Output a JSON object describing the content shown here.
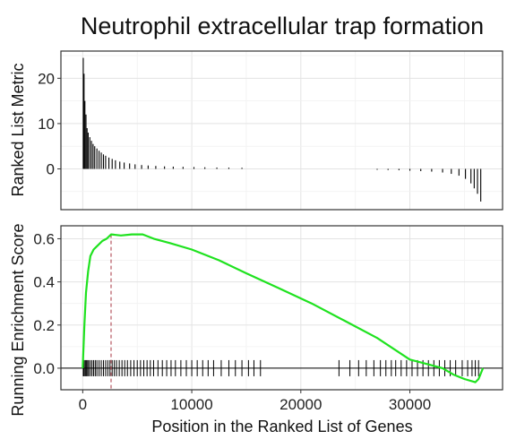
{
  "chart_data": [
    {
      "type": "bar",
      "panel": "ranked-list-metric",
      "title": "Neutrophil extracellular trap formation",
      "ylabel": "Ranked List Metric",
      "xlim": [
        -2000,
        38500
      ],
      "ylim": [
        -9,
        26
      ],
      "yticks": [
        0,
        10,
        20
      ],
      "grid": true,
      "bars": [
        {
          "x": 50,
          "y": 24.5
        },
        {
          "x": 120,
          "y": 21
        },
        {
          "x": 200,
          "y": 15
        },
        {
          "x": 300,
          "y": 12
        },
        {
          "x": 400,
          "y": 9
        },
        {
          "x": 500,
          "y": 8
        },
        {
          "x": 650,
          "y": 7
        },
        {
          "x": 800,
          "y": 6.2
        },
        {
          "x": 950,
          "y": 5.5
        },
        {
          "x": 1100,
          "y": 5
        },
        {
          "x": 1300,
          "y": 4.5
        },
        {
          "x": 1500,
          "y": 4
        },
        {
          "x": 1700,
          "y": 3.6
        },
        {
          "x": 1900,
          "y": 3.2
        },
        {
          "x": 2100,
          "y": 2.9
        },
        {
          "x": 2400,
          "y": 2.5
        },
        {
          "x": 2700,
          "y": 2.2
        },
        {
          "x": 3000,
          "y": 1.9
        },
        {
          "x": 3400,
          "y": 1.6
        },
        {
          "x": 3800,
          "y": 1.4
        },
        {
          "x": 4300,
          "y": 1.2
        },
        {
          "x": 4800,
          "y": 1.0
        },
        {
          "x": 5400,
          "y": 0.85
        },
        {
          "x": 6000,
          "y": 0.75
        },
        {
          "x": 6700,
          "y": 0.65
        },
        {
          "x": 7500,
          "y": 0.55
        },
        {
          "x": 8300,
          "y": 0.5
        },
        {
          "x": 9200,
          "y": 0.45
        },
        {
          "x": 10200,
          "y": 0.4
        },
        {
          "x": 11200,
          "y": 0.35
        },
        {
          "x": 12300,
          "y": 0.3
        },
        {
          "x": 13400,
          "y": 0.28
        },
        {
          "x": 14600,
          "y": 0.25
        },
        {
          "x": 27000,
          "y": -0.2
        },
        {
          "x": 28000,
          "y": -0.25
        },
        {
          "x": 29000,
          "y": -0.3
        },
        {
          "x": 30000,
          "y": -0.4
        },
        {
          "x": 31000,
          "y": -0.5
        },
        {
          "x": 32000,
          "y": -0.6
        },
        {
          "x": 33000,
          "y": -0.8
        },
        {
          "x": 33800,
          "y": -1.1
        },
        {
          "x": 34500,
          "y": -1.5
        },
        {
          "x": 35100,
          "y": -2.2
        },
        {
          "x": 35600,
          "y": -3.2
        },
        {
          "x": 35900,
          "y": -4.3
        },
        {
          "x": 36200,
          "y": -5.5
        },
        {
          "x": 36500,
          "y": -7.2
        }
      ]
    },
    {
      "type": "line",
      "panel": "running-enrichment-score",
      "xlabel": "Position in the Ranked List of Genes",
      "ylabel": "Running Enrichment Score",
      "xlim": [
        -2000,
        38500
      ],
      "ylim": [
        -0.1,
        0.66
      ],
      "xticks": [
        0,
        10000,
        20000,
        30000
      ],
      "yticks": [
        0.0,
        0.2,
        0.4,
        0.6
      ],
      "grid": true,
      "line_color": "#1fe21f",
      "peak_marker_color": "#b5555f",
      "peak": {
        "x": 2600,
        "y": 0.62
      },
      "running_score": {
        "x": [
          0,
          150,
          300,
          500,
          700,
          1000,
          1400,
          1800,
          2200,
          2600,
          3500,
          4500,
          5500,
          6500,
          8000,
          10000,
          12500,
          15000,
          18000,
          21000,
          24000,
          27000,
          30000,
          31500,
          33000,
          34000,
          35000,
          36000,
          36300,
          36700
        ],
        "y": [
          0.0,
          0.2,
          0.35,
          0.45,
          0.52,
          0.55,
          0.57,
          0.59,
          0.6,
          0.62,
          0.615,
          0.62,
          0.62,
          0.6,
          0.58,
          0.55,
          0.5,
          0.44,
          0.37,
          0.3,
          0.22,
          0.14,
          0.04,
          0.02,
          0.0,
          -0.03,
          -0.05,
          -0.065,
          -0.05,
          0.0
        ]
      },
      "hit_positions": [
        50,
        100,
        150,
        250,
        350,
        450,
        550,
        700,
        850,
        1000,
        1150,
        1300,
        1500,
        1700,
        1900,
        2100,
        2300,
        2500,
        2700,
        2900,
        3100,
        3350,
        3600,
        3850,
        4100,
        4400,
        4700,
        5000,
        5300,
        5600,
        5900,
        6200,
        6500,
        6900,
        7300,
        7700,
        8100,
        8500,
        9000,
        9500,
        10000,
        10500,
        11000,
        11500,
        12000,
        12700,
        13400,
        14000,
        14600,
        15200,
        15700,
        16300,
        23500,
        24500,
        25300,
        26000,
        26700,
        27300,
        27800,
        28300,
        28700,
        29200,
        29700,
        30200,
        30700,
        31200,
        31700,
        32200,
        32700,
        33200,
        33700,
        34200,
        34800,
        35300,
        35700,
        36000,
        36300
      ]
    }
  ]
}
